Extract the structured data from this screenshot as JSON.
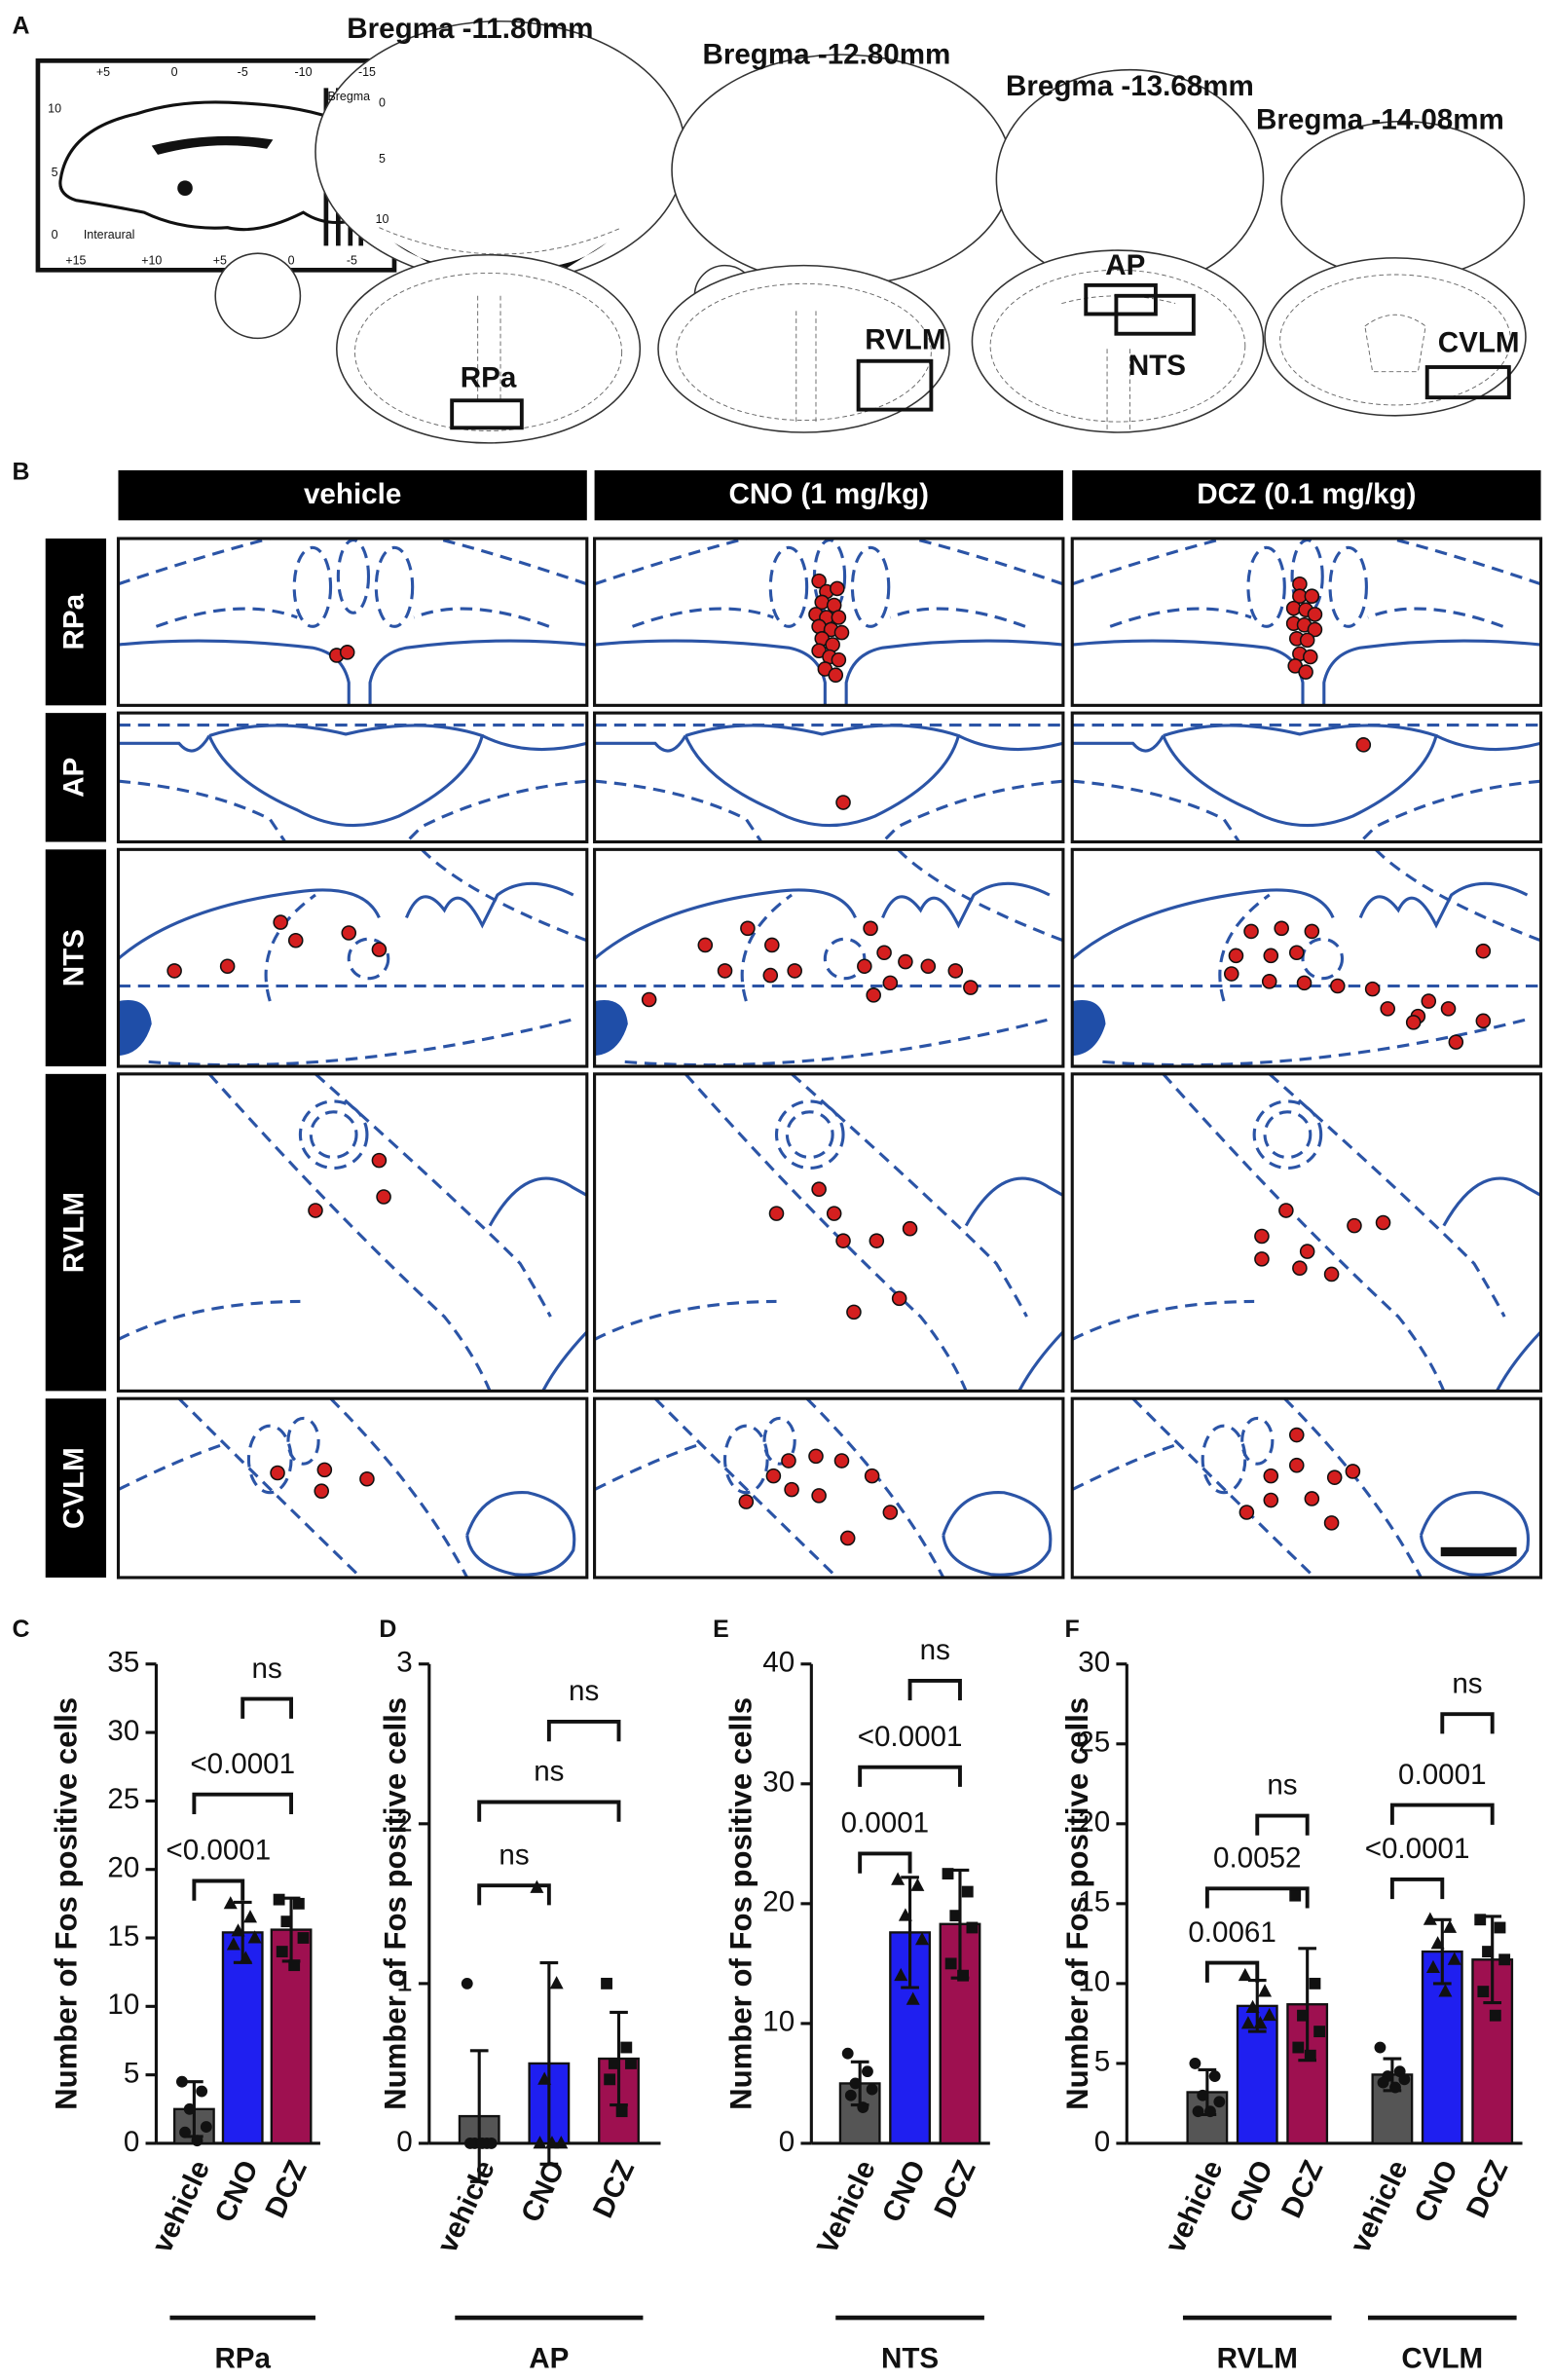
{
  "panel_a": {
    "label": "A",
    "inset": {
      "bregma": "Bregma",
      "interaural": "Interaural",
      "top_ticks": [
        "+5",
        "0",
        "-5",
        "-10",
        "-15"
      ],
      "bottom_ticks": [
        "+15",
        "+10",
        "+5",
        "0",
        "-5"
      ],
      "left_ticks": [
        "10",
        "5",
        "0"
      ],
      "right_ticks": [
        "0",
        "5",
        "10"
      ]
    },
    "sections": [
      {
        "bregma": "Bregma -11.80mm",
        "regions": [
          "RPa"
        ]
      },
      {
        "bregma": "Bregma -12.80mm",
        "regions": [
          "RVLM"
        ]
      },
      {
        "bregma": "Bregma  -13.68mm",
        "regions": [
          "AP",
          "NTS"
        ]
      },
      {
        "bregma": "Bregma -14.08mm",
        "regions": [
          "CVLM"
        ]
      }
    ]
  },
  "panel_b": {
    "label": "B",
    "columns": [
      "vehicle",
      "CNO (1 mg/kg)",
      "DCZ (0.1 mg/kg)"
    ],
    "rows": [
      "RPa",
      "AP",
      "NTS",
      "RVLM",
      "CVLM"
    ]
  },
  "chart_data": [
    {
      "type": "bar",
      "panel": "C",
      "ylabel": "Number of Fos positive cells",
      "ylim": [
        0,
        35
      ],
      "yticks": [
        0,
        5,
        10,
        15,
        20,
        25,
        30,
        35
      ],
      "colors": [
        "#555555",
        "#1f1ff0",
        "#9e1050"
      ],
      "groups": [
        {
          "name": "RPa",
          "categories": [
            "vehicle",
            "CNO",
            "DCZ"
          ],
          "values": [
            2.5,
            15.4,
            15.6
          ],
          "errors": [
            2.0,
            2.2,
            2.3
          ],
          "points": [
            [
              4.5,
              3.8,
              2.5,
              1.2,
              0.8,
              0.2
            ],
            [
              17.5,
              16.5,
              15.5,
              15,
              14.5,
              13.5
            ],
            [
              17.8,
              17.5,
              16.2,
              15,
              14,
              13
            ]
          ],
          "comparisons": [
            {
              "pair": [
                "vehicle",
                "CNO"
              ],
              "label": "<0.0001"
            },
            {
              "pair": [
                "vehicle",
                "DCZ"
              ],
              "label": "<0.0001"
            },
            {
              "pair": [
                "CNO",
                "DCZ"
              ],
              "label": "ns"
            }
          ]
        }
      ]
    },
    {
      "type": "bar",
      "panel": "D",
      "ylabel": "Number of Fos positive cells",
      "ylim": [
        0,
        3
      ],
      "yticks": [
        0,
        1,
        2,
        3
      ],
      "colors": [
        "#555555",
        "#1f1ff0",
        "#9e1050"
      ],
      "groups": [
        {
          "name": "AP",
          "categories": [
            "vehicle",
            "CNO",
            "DCZ"
          ],
          "values": [
            0.17,
            0.5,
            0.53
          ],
          "errors": [
            0.41,
            0.63,
            0.29
          ],
          "points": [
            [
              1,
              0,
              0,
              0,
              0,
              0
            ],
            [
              1.6,
              1,
              0.4,
              0,
              0,
              0
            ],
            [
              1,
              0.6,
              0.5,
              0.5,
              0.4,
              0.2
            ]
          ],
          "comparisons": [
            {
              "pair": [
                "vehicle",
                "CNO"
              ],
              "label": "ns"
            },
            {
              "pair": [
                "vehicle",
                "DCZ"
              ],
              "label": "ns"
            },
            {
              "pair": [
                "CNO",
                "DCZ"
              ],
              "label": "ns"
            }
          ]
        }
      ]
    },
    {
      "type": "bar",
      "panel": "E",
      "ylabel": "Number of Fos positive cells",
      "ylim": [
        0,
        40
      ],
      "yticks": [
        0,
        10,
        20,
        30,
        40
      ],
      "colors": [
        "#555555",
        "#1f1ff0",
        "#9e1050"
      ],
      "groups": [
        {
          "name": "NTS",
          "categories": [
            "Vehicle",
            "CNO",
            "DCZ"
          ],
          "values": [
            5,
            17.6,
            18.3
          ],
          "errors": [
            1.8,
            4.6,
            4.5
          ],
          "points": [
            [
              7.5,
              6,
              5,
              4.5,
              4,
              3
            ],
            [
              22,
              21.5,
              19,
              17,
              14,
              12
            ],
            [
              22.5,
              21,
              19,
              18,
              15,
              14
            ]
          ],
          "comparisons": [
            {
              "pair": [
                "Vehicle",
                "CNO"
              ],
              "label": "0.0001"
            },
            {
              "pair": [
                "Vehicle",
                "DCZ"
              ],
              "label": "<0.0001"
            },
            {
              "pair": [
                "CNO",
                "DCZ"
              ],
              "label": "ns"
            }
          ]
        }
      ]
    },
    {
      "type": "bar",
      "panel": "F",
      "ylabel": "Number of Fos positive cells",
      "ylim": [
        0,
        30
      ],
      "yticks": [
        0,
        5,
        10,
        15,
        20,
        25,
        30
      ],
      "colors": [
        "#555555",
        "#1f1ff0",
        "#9e1050"
      ],
      "groups": [
        {
          "name": "RVLM",
          "categories": [
            "vehicle",
            "CNO",
            "DCZ"
          ],
          "values": [
            3.2,
            8.6,
            8.7
          ],
          "errors": [
            1.4,
            1.6,
            3.5
          ],
          "points": [
            [
              5,
              4.2,
              3,
              2.6,
              2,
              2
            ],
            [
              10.5,
              9.5,
              8.5,
              8,
              7.5,
              7.5
            ],
            [
              15.5,
              10,
              8,
              7,
              6,
              5.5
            ]
          ],
          "comparisons": [
            {
              "pair": [
                "vehicle",
                "CNO"
              ],
              "label": "0.0061"
            },
            {
              "pair": [
                "vehicle",
                "DCZ"
              ],
              "label": "0.0052"
            },
            {
              "pair": [
                "CNO",
                "DCZ"
              ],
              "label": "ns"
            }
          ]
        },
        {
          "name": "CVLM",
          "categories": [
            "vehicle",
            "CNO",
            "DCZ"
          ],
          "values": [
            4.3,
            12,
            11.5
          ],
          "errors": [
            1,
            2,
            2.7
          ],
          "points": [
            [
              6,
              4.5,
              4.2,
              4,
              3.8,
              3.5
            ],
            [
              14,
              13.5,
              12.5,
              11.5,
              11,
              9.5
            ],
            [
              14,
              13.5,
              12,
              11.5,
              9.5,
              8
            ]
          ],
          "comparisons": [
            {
              "pair": [
                "vehicle",
                "CNO"
              ],
              "label": "<0.0001"
            },
            {
              "pair": [
                "vehicle",
                "DCZ"
              ],
              "label": "0.0001"
            },
            {
              "pair": [
                "CNO",
                "DCZ"
              ],
              "label": "ns"
            }
          ]
        }
      ]
    }
  ]
}
